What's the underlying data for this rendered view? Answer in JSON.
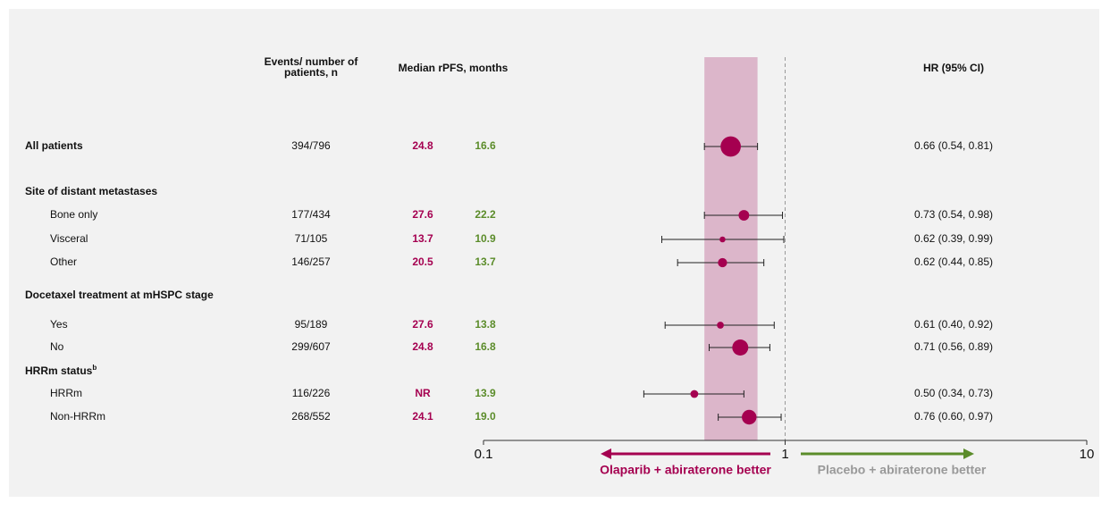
{
  "chart_data": {
    "type": "forest",
    "columns": {
      "events": [
        "Events/ number of",
        "patients, n"
      ],
      "median": "Median rPFS, months",
      "hr": "HR (95% CI)"
    },
    "overall": {
      "label": "All patients",
      "events": "394/796",
      "olaparib": "24.8",
      "placebo": "16.6",
      "hr": 0.66,
      "ci": [
        0.54,
        0.81
      ],
      "hr_label": "0.66 (0.54, 0.81)"
    },
    "groups": [
      {
        "title": "Site of distant metastases",
        "rows": [
          {
            "label": "Bone only",
            "events": "177/434",
            "olaparib": "27.6",
            "placebo": "22.2",
            "hr": 0.73,
            "ci": [
              0.54,
              0.98
            ],
            "hr_label": "0.73 (0.54, 0.98)"
          },
          {
            "label": "Visceral",
            "events": "71/105",
            "olaparib": "13.7",
            "placebo": "10.9",
            "hr": 0.62,
            "ci": [
              0.39,
              0.99
            ],
            "hr_label": "0.62 (0.39, 0.99)"
          },
          {
            "label": "Other",
            "events": "146/257",
            "olaparib": "20.5",
            "placebo": "13.7",
            "hr": 0.62,
            "ci": [
              0.44,
              0.85
            ],
            "hr_label": "0.62 (0.44, 0.85)"
          }
        ]
      },
      {
        "title": "Docetaxel treatment at mHSPC stage",
        "rows": [
          {
            "label": "Yes",
            "events": "95/189",
            "olaparib": "27.6",
            "placebo": "13.8",
            "hr": 0.61,
            "ci": [
              0.4,
              0.92
            ],
            "hr_label": "0.61 (0.40, 0.92)"
          },
          {
            "label": "No",
            "events": "299/607",
            "olaparib": "24.8",
            "placebo": "16.8",
            "hr": 0.71,
            "ci": [
              0.56,
              0.89
            ],
            "hr_label": "0.71 (0.56, 0.89)"
          }
        ]
      },
      {
        "title": "HRRm status",
        "superscript": "b",
        "rows": [
          {
            "label": "HRRm",
            "events": "116/226",
            "olaparib": "NR",
            "placebo": "13.9",
            "hr": 0.5,
            "ci": [
              0.34,
              0.73
            ],
            "hr_label": "0.50 (0.34, 0.73)"
          },
          {
            "label": "Non-HRRm",
            "events": "268/552",
            "olaparib": "24.1",
            "placebo": "19.0",
            "hr": 0.76,
            "ci": [
              0.6,
              0.97
            ],
            "hr_label": "0.76 (0.60, 0.97)"
          }
        ]
      }
    ],
    "xlim": [
      0.1,
      10
    ],
    "xticks": [
      0.1,
      1,
      10
    ],
    "log_scale": true,
    "left_label": "Olaparib + abiraterone better",
    "right_label": "Placebo + abiraterone better",
    "olaparib_color": "#a50050",
    "placebo_color": "#5b8c2a",
    "band_color": "#dcb6ca"
  }
}
